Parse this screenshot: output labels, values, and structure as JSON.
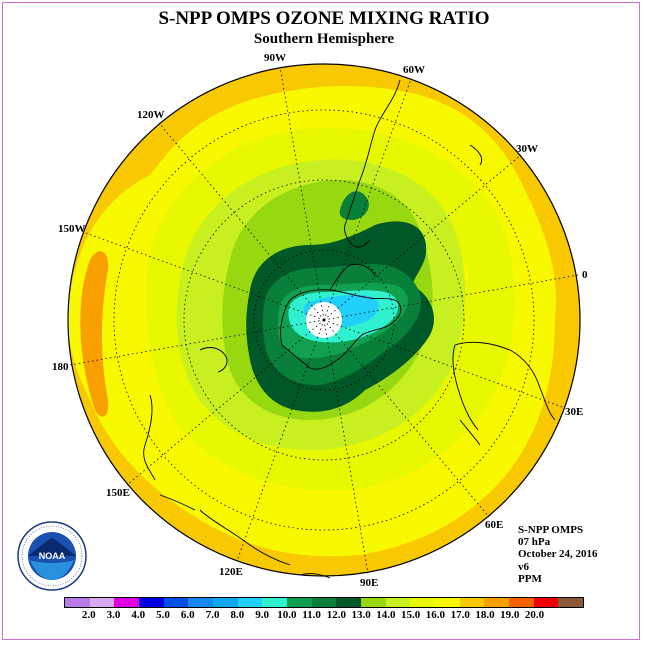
{
  "title": "S-NPP OMPS OZONE MIXING RATIO",
  "subtitle": "Southern Hemisphere",
  "longitude_labels": [
    "90W",
    "60W",
    "30W",
    "0",
    "30E",
    "60E",
    "90E",
    "120E",
    "150E",
    "180",
    "150W",
    "120W"
  ],
  "info": {
    "instrument": "S-NPP OMPS",
    "level": "07 hPa",
    "date": "October 24, 2016",
    "version": "v6",
    "units": "PPM"
  },
  "colorbar": {
    "ticks": [
      "2.0",
      "3.0",
      "4.0",
      "5.0",
      "6.0",
      "7.0",
      "8.0",
      "9.0",
      "10.0",
      "11.0",
      "12.0",
      "13.0",
      "14.0",
      "15.0",
      "16.0",
      "17.0",
      "18.0",
      "19.0",
      "20.0"
    ],
    "colors": [
      "#b87ae8",
      "#d8a8f0",
      "#e000e0",
      "#0000e0",
      "#0050e8",
      "#1888f0",
      "#10a8f0",
      "#20d0f8",
      "#30f0d0",
      "#10a050",
      "#08803a",
      "#005828",
      "#98d810",
      "#c8f020",
      "#e8f800",
      "#f8f800",
      "#f8c800",
      "#f8a000",
      "#f86000",
      "#f00000",
      "#8b5a3c"
    ]
  },
  "logo": {
    "name": "noaa-logo"
  }
}
